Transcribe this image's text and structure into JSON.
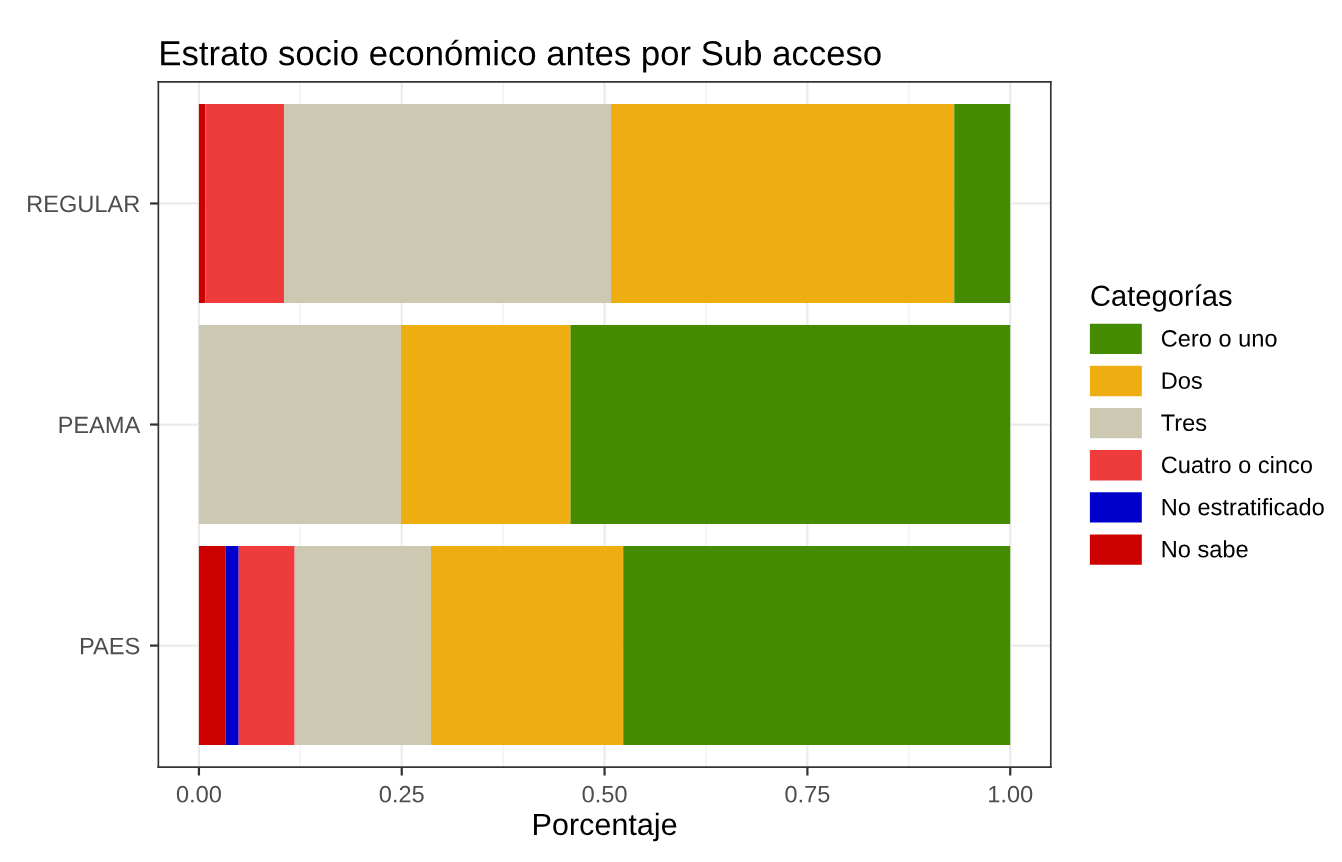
{
  "chart_data": {
    "type": "bar",
    "orientation": "horizontal",
    "stacked": true,
    "title": "Estrato socio económico antes por Sub acceso",
    "xlabel": "Porcentaje",
    "legend_title": "Categorías",
    "categories": [
      "REGULAR",
      "PEAMA",
      "PAES"
    ],
    "series": [
      {
        "name": "No sabe",
        "color": "#cd0000",
        "values": [
          0.008,
          null,
          0.033
        ]
      },
      {
        "name": "No estratificado",
        "color": "#0000cd",
        "values": [
          null,
          null,
          0.016
        ]
      },
      {
        "name": "Cuatro o cinco",
        "color": "#ee3b3b",
        "values": [
          0.097,
          null,
          0.069
        ]
      },
      {
        "name": "Tres",
        "color": "#cdc8b1",
        "values": [
          0.403,
          0.249,
          0.168
        ]
      },
      {
        "name": "Dos",
        "color": "#eeae11",
        "values": [
          0.423,
          0.209,
          0.237
        ]
      },
      {
        "name": "Cero o uno",
        "color": "#458b00",
        "values": [
          0.069,
          0.542,
          0.477
        ]
      }
    ],
    "xlim": [
      -0.05,
      1.05
    ],
    "xticks": [
      {
        "value": 0,
        "label": "0.00"
      },
      {
        "value": 0.25,
        "label": "0.25"
      },
      {
        "value": 0.5,
        "label": "0.50"
      },
      {
        "value": 0.75,
        "label": "0.75"
      },
      {
        "value": 1,
        "label": "1.00"
      }
    ],
    "grid": true,
    "legend": "right"
  }
}
